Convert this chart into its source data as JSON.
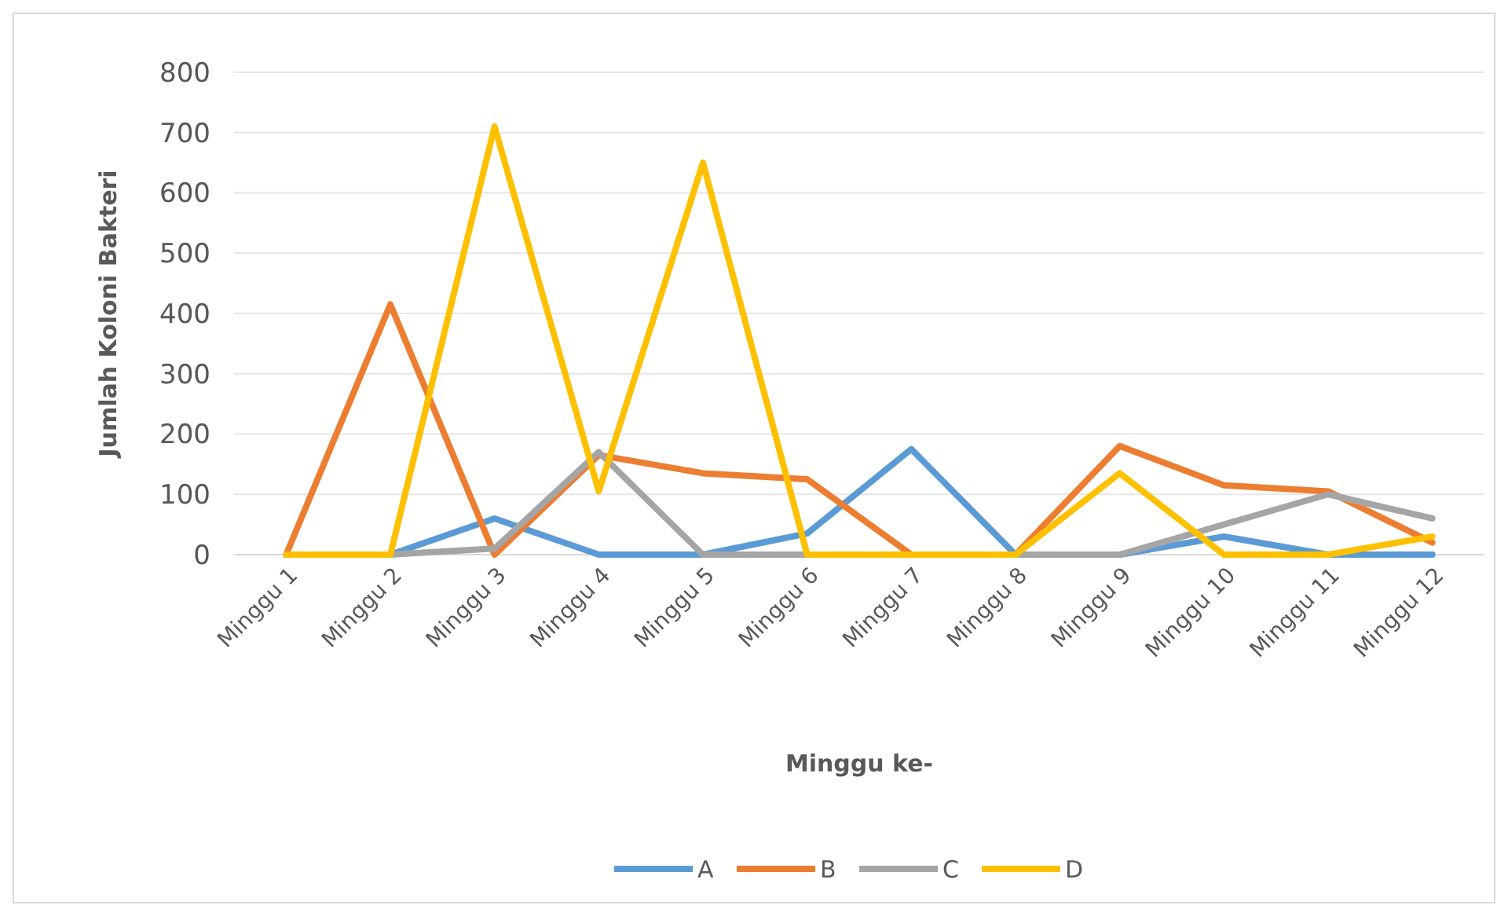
{
  "chart_data": {
    "type": "line",
    "xlabel": "Minggu ke-",
    "ylabel": "Jumlah Koloni Bakteri",
    "categories": [
      "Minggu 1",
      "Minggu 2",
      "Minggu 3",
      "Minggu 4",
      "Minggu 5",
      "Minggu 6",
      "Minggu 7",
      "Minggu 8",
      "Minggu 9",
      "Minggu 10",
      "Minggu 11",
      "Minggu 12"
    ],
    "series": [
      {
        "name": "A",
        "color": "#5b9bd5",
        "values": [
          0,
          0,
          60,
          0,
          0,
          35,
          175,
          0,
          0,
          30,
          0,
          0
        ]
      },
      {
        "name": "B",
        "color": "#ed7d31",
        "values": [
          0,
          415,
          0,
          165,
          135,
          125,
          0,
          0,
          180,
          115,
          105,
          20
        ]
      },
      {
        "name": "C",
        "color": "#a5a5a5",
        "values": [
          0,
          0,
          10,
          170,
          0,
          0,
          0,
          0,
          0,
          50,
          100,
          60
        ]
      },
      {
        "name": "D",
        "color": "#ffc000",
        "values": [
          0,
          0,
          710,
          105,
          650,
          0,
          0,
          0,
          135,
          0,
          0,
          30
        ]
      }
    ],
    "ylim": [
      0,
      800
    ],
    "yticks": [
      0,
      100,
      200,
      300,
      400,
      500,
      600,
      700,
      800
    ],
    "grid": "y",
    "legend": "bottom",
    "marker": "none",
    "line_style": "solid"
  }
}
